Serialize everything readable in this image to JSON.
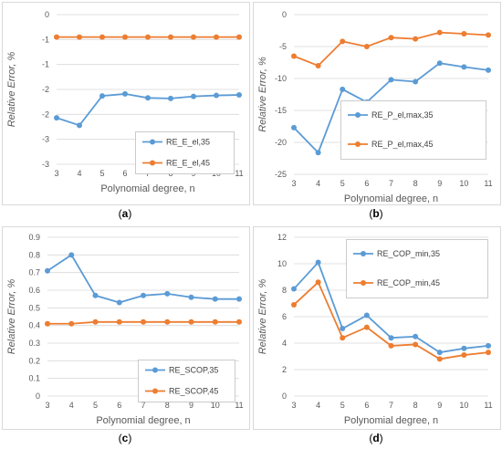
{
  "colors": {
    "series35": "#5b9bd5",
    "series45": "#ed7d31"
  },
  "chart_data": [
    {
      "panel_label": "(a)",
      "type": "line",
      "x": [
        3,
        4,
        5,
        6,
        7,
        8,
        9,
        10,
        11
      ],
      "xlabel": "Polynomial degree, n",
      "ylabel": "Relative Error, %",
      "ylim": [
        -3,
        0
      ],
      "yticks": [
        0,
        -0.5,
        -1,
        -1.5,
        -2,
        -2.5,
        -3
      ],
      "ytick_labels": [
        "0",
        "-1",
        "-1",
        "-2",
        "-2",
        "-3",
        "-3"
      ],
      "grid": true,
      "legend_position": "right",
      "series": [
        {
          "name": "RE_E_el,35",
          "color": "#5b9bd5",
          "values": [
            -2.07,
            -2.22,
            -1.63,
            -1.59,
            -1.67,
            -1.68,
            -1.64,
            -1.62,
            -1.61
          ]
        },
        {
          "name": "RE_E_el,45",
          "color": "#ed7d31",
          "values": [
            -0.45,
            -0.45,
            -0.45,
            -0.45,
            -0.45,
            -0.45,
            -0.45,
            -0.45,
            -0.45
          ]
        }
      ]
    },
    {
      "panel_label": "(b)",
      "type": "line",
      "x": [
        3,
        4,
        5,
        6,
        7,
        8,
        9,
        10,
        11
      ],
      "xlabel": "Polynomial degree, n",
      "ylabel": "Relative Error, %",
      "ylim": [
        -25,
        0
      ],
      "yticks": [
        0,
        -5,
        -10,
        -15,
        -20,
        -25
      ],
      "ytick_labels": [
        "0",
        "-5",
        "-10",
        "-15",
        "-20",
        "-25"
      ],
      "grid": true,
      "legend_position": "bottom-right",
      "series": [
        {
          "name": "RE_P_el,max,35",
          "color": "#5b9bd5",
          "values": [
            -17.7,
            -21.6,
            -11.7,
            -13.7,
            -10.2,
            -10.5,
            -7.6,
            -8.2,
            -8.7
          ]
        },
        {
          "name": "RE_P_el,max,45",
          "color": "#ed7d31",
          "values": [
            -6.5,
            -8.0,
            -4.2,
            -5.0,
            -3.6,
            -3.8,
            -2.8,
            -3.0,
            -3.2
          ]
        }
      ]
    },
    {
      "panel_label": "(c)",
      "type": "line",
      "x": [
        3,
        4,
        5,
        6,
        7,
        8,
        9,
        10,
        11
      ],
      "xlabel": "Polynomial degree, n",
      "ylabel": "Relative Error, %",
      "ylim": [
        0,
        0.9
      ],
      "yticks": [
        0,
        0.1,
        0.2,
        0.3,
        0.4,
        0.5,
        0.6,
        0.7,
        0.8,
        0.9
      ],
      "ytick_labels": [
        "0",
        "0.1",
        "0.2",
        "0.3",
        "0.4",
        "0.5",
        "0.6",
        "0.7",
        "0.8",
        "0.9"
      ],
      "grid": true,
      "legend_position": "bottom-right",
      "series": [
        {
          "name": "RE_SCOP,35",
          "color": "#5b9bd5",
          "values": [
            0.71,
            0.8,
            0.57,
            0.53,
            0.57,
            0.58,
            0.56,
            0.55,
            0.55
          ]
        },
        {
          "name": "RE_SCOP,45",
          "color": "#ed7d31",
          "values": [
            0.41,
            0.41,
            0.42,
            0.42,
            0.42,
            0.42,
            0.42,
            0.42,
            0.42
          ]
        }
      ]
    },
    {
      "panel_label": "(d)",
      "type": "line",
      "x": [
        3,
        4,
        5,
        6,
        7,
        8,
        9,
        10,
        11
      ],
      "xlabel": "Polynomial degree, n",
      "ylabel": "Relative Error, %",
      "ylim": [
        0,
        12
      ],
      "yticks": [
        0,
        2,
        4,
        6,
        8,
        10,
        12
      ],
      "ytick_labels": [
        "0",
        "2",
        "4",
        "6",
        "8",
        "10",
        "12"
      ],
      "grid": true,
      "legend_position": "top-right",
      "series": [
        {
          "name": "RE_COP_min,35",
          "color": "#5b9bd5",
          "values": [
            8.1,
            10.1,
            5.1,
            6.1,
            4.4,
            4.5,
            3.3,
            3.6,
            3.8
          ]
        },
        {
          "name": "RE_COP_min,45",
          "color": "#ed7d31",
          "values": [
            6.9,
            8.6,
            4.4,
            5.2,
            3.8,
            3.9,
            2.8,
            3.1,
            3.3
          ]
        }
      ]
    }
  ]
}
